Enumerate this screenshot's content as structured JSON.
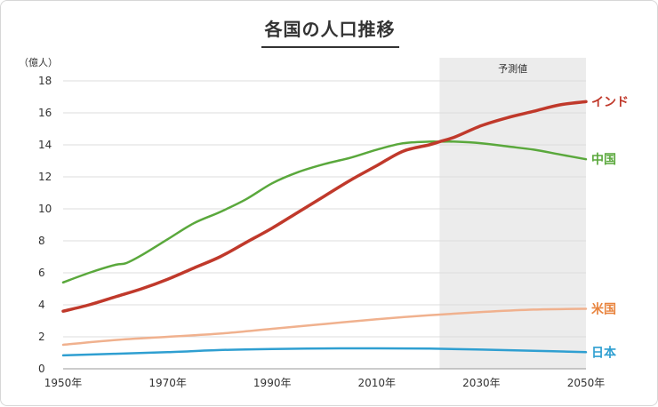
{
  "chart_data": {
    "type": "line",
    "title": "各国の人口推移",
    "ylabel": "（億人）",
    "xlim": [
      1950,
      2050
    ],
    "ylim": [
      0,
      18
    ],
    "yticks": [
      0,
      2,
      4,
      6,
      8,
      10,
      12,
      14,
      16,
      18
    ],
    "xticks": [
      {
        "value": 1950,
        "label": "1950年"
      },
      {
        "value": 1970,
        "label": "1970年"
      },
      {
        "value": 1990,
        "label": "1990年"
      },
      {
        "value": 2010,
        "label": "2010年"
      },
      {
        "value": 2030,
        "label": "2030年"
      },
      {
        "value": 2050,
        "label": "2050年"
      }
    ],
    "grid": "horizontal",
    "forecast": {
      "label": "予測値",
      "from": 2022,
      "to": 2050
    },
    "series": [
      {
        "name": "インド",
        "color": "#c0392b",
        "x": [
          1950,
          1955,
          1960,
          1965,
          1970,
          1975,
          1980,
          1985,
          1990,
          1995,
          2000,
          2005,
          2010,
          2015,
          2020,
          2022,
          2025,
          2030,
          2035,
          2040,
          2045,
          2050
        ],
        "values": [
          3.6,
          4.0,
          4.5,
          5.0,
          5.6,
          6.3,
          7.0,
          7.9,
          8.8,
          9.8,
          10.8,
          11.8,
          12.7,
          13.6,
          14.0,
          14.2,
          14.5,
          15.2,
          15.7,
          16.1,
          16.5,
          16.7
        ]
      },
      {
        "name": "中国",
        "color": "#5aa83c",
        "x": [
          1950,
          1955,
          1960,
          1962,
          1965,
          1970,
          1975,
          1980,
          1985,
          1990,
          1995,
          2000,
          2005,
          2010,
          2015,
          2020,
          2022,
          2025,
          2030,
          2035,
          2040,
          2045,
          2050
        ],
        "values": [
          5.4,
          6.0,
          6.5,
          6.6,
          7.1,
          8.1,
          9.1,
          9.8,
          10.6,
          11.6,
          12.3,
          12.8,
          13.2,
          13.7,
          14.1,
          14.2,
          14.2,
          14.2,
          14.1,
          13.9,
          13.7,
          13.4,
          13.1
        ]
      },
      {
        "name": "米国",
        "color": "#f0b18e",
        "x": [
          1950,
          1960,
          1970,
          1980,
          1990,
          2000,
          2010,
          2020,
          2030,
          2040,
          2050
        ],
        "values": [
          1.5,
          1.8,
          2.0,
          2.2,
          2.5,
          2.8,
          3.1,
          3.35,
          3.55,
          3.7,
          3.75
        ]
      },
      {
        "name": "日本",
        "color": "#2f9fd1",
        "x": [
          1950,
          1960,
          1970,
          1980,
          1990,
          2000,
          2010,
          2020,
          2030,
          2040,
          2050
        ],
        "values": [
          0.84,
          0.94,
          1.04,
          1.17,
          1.24,
          1.27,
          1.28,
          1.26,
          1.2,
          1.13,
          1.04
        ]
      }
    ]
  }
}
